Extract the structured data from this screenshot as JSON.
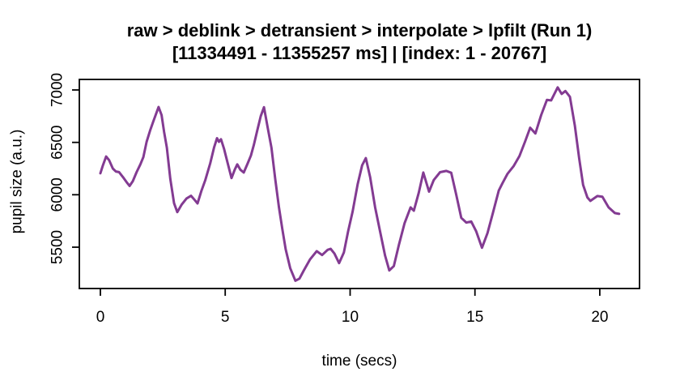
{
  "header": {
    "title_line1": "raw > deblink > detransient > interpolate > lpfilt (Run 1)",
    "title_line2": "[11334491 - 11355257 ms] | [index: 1 - 20767]"
  },
  "chart_data": {
    "type": "line",
    "title": "raw > deblink > detransient > interpolate > lpfilt (Run 1)",
    "subtitle": "[11334491 - 11355257 ms] | [index: 1 - 20767]",
    "xlabel": "time (secs)",
    "ylabel": "pupil size (a.u.)",
    "xlim": [
      -0.83,
      21.6
    ],
    "ylim": [
      5100,
      7100
    ],
    "x_ticks": [
      "0",
      "5",
      "10",
      "15",
      "20"
    ],
    "y_ticks": [
      "5500",
      "6000",
      "6500",
      "7000"
    ],
    "grid": "off",
    "legend": "none",
    "line_color": "#833B92",
    "series": [
      {
        "name": "pupil size (a.u.)",
        "x": [
          0.0,
          0.1,
          0.23,
          0.35,
          0.5,
          0.62,
          0.75,
          0.9,
          1.05,
          1.17,
          1.3,
          1.45,
          1.6,
          1.72,
          1.85,
          2.0,
          2.12,
          2.33,
          2.45,
          2.55,
          2.66,
          2.8,
          2.95,
          3.08,
          3.25,
          3.45,
          3.63,
          3.76,
          3.89,
          4.05,
          4.2,
          4.4,
          4.55,
          4.67,
          4.75,
          4.83,
          4.95,
          5.1,
          5.25,
          5.38,
          5.48,
          5.6,
          5.74,
          5.9,
          6.03,
          6.15,
          6.28,
          6.42,
          6.55,
          6.7,
          6.85,
          7.0,
          7.15,
          7.28,
          7.42,
          7.6,
          7.81,
          7.97,
          8.15,
          8.4,
          8.66,
          8.88,
          9.1,
          9.22,
          9.37,
          9.56,
          9.75,
          9.92,
          10.1,
          10.3,
          10.48,
          10.63,
          10.8,
          11.0,
          11.2,
          11.4,
          11.57,
          11.75,
          11.95,
          12.18,
          12.42,
          12.55,
          12.75,
          12.93,
          13.16,
          13.35,
          13.6,
          13.85,
          14.05,
          14.25,
          14.45,
          14.65,
          14.85,
          15.05,
          15.28,
          15.5,
          15.72,
          15.95,
          16.1,
          16.3,
          16.55,
          16.78,
          17.0,
          17.21,
          17.42,
          17.65,
          17.88,
          18.05,
          18.31,
          18.47,
          18.62,
          18.8,
          19.0,
          19.17,
          19.33,
          19.5,
          19.62,
          19.9,
          20.1,
          20.35,
          20.6,
          20.77
        ],
        "y": [
          6205,
          6280,
          6365,
          6330,
          6250,
          6222,
          6216,
          6170,
          6120,
          6085,
          6130,
          6215,
          6290,
          6360,
          6505,
          6620,
          6700,
          6838,
          6760,
          6600,
          6450,
          6150,
          5920,
          5835,
          5905,
          5965,
          5990,
          5955,
          5918,
          6040,
          6140,
          6300,
          6450,
          6540,
          6505,
          6530,
          6440,
          6300,
          6160,
          6240,
          6290,
          6240,
          6212,
          6300,
          6375,
          6480,
          6610,
          6750,
          6835,
          6640,
          6450,
          6150,
          5880,
          5680,
          5480,
          5300,
          5180,
          5200,
          5280,
          5385,
          5462,
          5425,
          5475,
          5485,
          5440,
          5348,
          5450,
          5650,
          5840,
          6100,
          6280,
          6350,
          6170,
          5880,
          5650,
          5420,
          5278,
          5320,
          5520,
          5730,
          5880,
          5848,
          6020,
          6212,
          6030,
          6140,
          6215,
          6228,
          6210,
          6000,
          5780,
          5735,
          5745,
          5650,
          5495,
          5635,
          5830,
          6040,
          6110,
          6200,
          6275,
          6370,
          6505,
          6640,
          6585,
          6760,
          6905,
          6900,
          7025,
          6962,
          6990,
          6935,
          6660,
          6350,
          6095,
          5975,
          5942,
          5988,
          5982,
          5880,
          5826,
          5818
        ]
      }
    ]
  }
}
